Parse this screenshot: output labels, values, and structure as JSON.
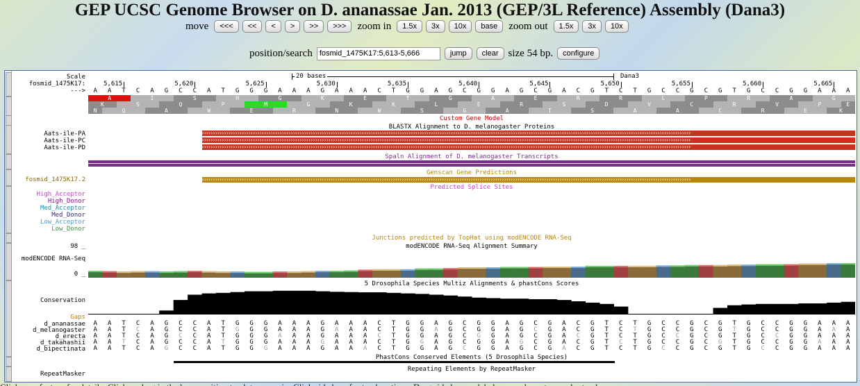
{
  "title": "GEP UCSC Genome Browser on D. ananassae Jan. 2013 (GEP/3L Reference) Assembly (Dana3)",
  "nav": {
    "move_label": "move",
    "move_buttons": [
      "<<<",
      "<<",
      "<",
      ">",
      ">>",
      ">>>"
    ],
    "zoom_in_label": "zoom in",
    "zoom_in_buttons": [
      "1.5x",
      "3x",
      "10x"
    ],
    "base_button": "base",
    "zoom_out_label": "zoom out",
    "zoom_out_buttons": [
      "1.5x",
      "3x",
      "10x"
    ]
  },
  "position": {
    "label": "position/search",
    "value": "fosmid_1475K17:5,613-5,666",
    "jump": "jump",
    "clear": "clear",
    "size": "size 54 bp.",
    "configure": "configure"
  },
  "ruler": {
    "scale_label": "Scale",
    "scale_text": "20 bases",
    "assembly": "Dana3",
    "chrom_label": "fosmid_1475K17:",
    "strand_label": "--->",
    "ticks": [
      "5,615",
      "5,620",
      "5,625",
      "5,630",
      "5,635",
      "5,640",
      "5,645",
      "5,650",
      "5,655",
      "5,660",
      "5,665"
    ]
  },
  "sequence": "AATCAGCCATGGGAAAGAAACTGGAGCGGAGCGACGTCTGCCGCGTGCCGGAAA",
  "frame1": [
    "A",
    "I",
    "S",
    "H",
    "G",
    "K",
    "E",
    "T",
    "G",
    "A",
    "E",
    "R",
    "R",
    "L",
    "P",
    "R",
    "A",
    "G",
    "K"
  ],
  "frame2": [
    "K",
    "S",
    "Q",
    "P",
    "M",
    "G",
    "K",
    "K",
    "L",
    "E",
    "R",
    "S",
    "D",
    "V",
    "C",
    "R",
    "V",
    "P",
    "E"
  ],
  "frame3": [
    "N",
    "Q",
    "A",
    "W",
    "E",
    "R",
    "N",
    "W",
    "S",
    "G",
    "A",
    "T",
    "S",
    "A",
    "A",
    "C",
    "R",
    "E",
    "K"
  ],
  "tracks": {
    "custom_gene_model": "Custom Gene Model",
    "blastx_title": "BLASTX Alignment to D. melanogaster Proteins",
    "blastx_items": [
      "Aats-ile-PA",
      "Aats-ile-PC",
      "Aats-ile-PD"
    ],
    "spaln_title": "Spaln Alignment of D. melanogaster Transcripts",
    "genscan_title": "Genscan Gene Predictions",
    "genscan_item": "fosmid_1475K17.2",
    "splice_title": "Predicted Splice Sites",
    "splice_labels": [
      "High_Acceptor",
      "High_Donor",
      "Med_Acceptor",
      "Med_Donor",
      "Low_Acceptor",
      "Low_Donor"
    ],
    "junctions_title": "Junctions predicted by TopHat using modENCODE RNA-Seq",
    "rnaseq_title": "modENCODE RNA-Seq Alignment Summary",
    "rnaseq_label": "modENCODE RNA-Seq",
    "rnaseq_max": "98 _",
    "rnaseq_min": "0 _",
    "multiz_title": "5 Drosophila Species Multiz Alignments & phastCons Scores",
    "conservation_label": "Conservation",
    "gaps_label": "Gaps",
    "species": [
      "d_ananassae",
      "d_melanogaster",
      "d_erecta",
      "d_takahashii",
      "d_bipectinata"
    ],
    "phastcons_title": "PhastCons Conserved Elements (5 Drosophila Species)",
    "repeat_title": "Repeating Elements by RepeatMasker",
    "repeat_label": "RepeatMasker"
  },
  "colors": {
    "blastx": "#c8321e",
    "spaln": "#7b2d8e",
    "genscan": "#b8860b",
    "custom_gene": "#c00000",
    "splice_colors": [
      "#d040d0",
      "#a000a0",
      "#1890b0",
      "#303080",
      "#40a0d0",
      "#409040"
    ]
  },
  "rnaseq_values": [
    0.18,
    0.17,
    0.16,
    0.17,
    0.17,
    0.16,
    0.17,
    0.18,
    0.17,
    0.16,
    0.16,
    0.15,
    0.15,
    0.16,
    0.16,
    0.17,
    0.18,
    0.18,
    0.19,
    0.21,
    0.22,
    0.22,
    0.22,
    0.24,
    0.24,
    0.25,
    0.27,
    0.27,
    0.27,
    0.28,
    0.28,
    0.28,
    0.29,
    0.29,
    0.29,
    0.31,
    0.31,
    0.31,
    0.31,
    0.31,
    0.32,
    0.32,
    0.33,
    0.33,
    0.33,
    0.34,
    0.34,
    0.35,
    0.35,
    0.35,
    0.37,
    0.37,
    0.38,
    0.38
  ],
  "conservation_values": [
    0.0,
    0.0,
    0.0,
    0.0,
    0.0,
    0.15,
    0.55,
    0.75,
    0.8,
    0.82,
    0.85,
    0.88,
    0.88,
    0.9,
    0.9,
    0.9,
    0.88,
    0.86,
    0.85,
    0.84,
    0.84,
    0.82,
    0.8,
    0.78,
    0.75,
    0.72,
    0.68,
    0.64,
    0.62,
    0.6,
    0.6,
    0.58,
    0.58,
    0.55,
    0.5,
    0.45,
    0.4,
    0.3,
    0.0,
    0.0,
    0.0,
    0.0,
    0.0,
    0.0,
    0.25,
    0.35,
    0.38,
    0.4,
    0.4,
    0.4,
    0.42,
    0.42,
    0.45,
    0.48
  ],
  "bottom_text": "Click on a feature for details. Click or drag in the base position track to zoom in. Click side bars for track options. Drag side bars or labels up or down to reorder tracks."
}
